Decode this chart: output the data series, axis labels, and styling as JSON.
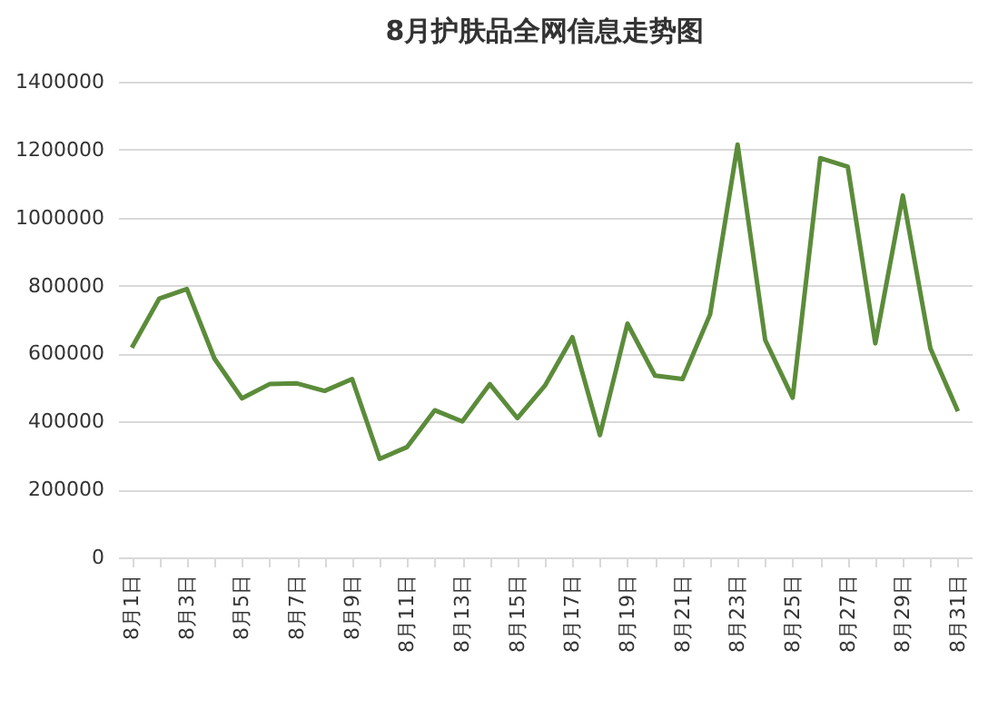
{
  "chart_data": {
    "type": "line",
    "title": "8月护肤品全网信息走势图",
    "categories": [
      "8月1日",
      null,
      "8月3日",
      null,
      "8月5日",
      null,
      "8月7日",
      null,
      "8月9日",
      null,
      "8月11日",
      null,
      "8月13日",
      null,
      "8月15日",
      null,
      "8月17日",
      null,
      "8月19日",
      null,
      "8月21日",
      null,
      "8月23日",
      null,
      "8月25日",
      null,
      "8月27日",
      null,
      "8月29日",
      null,
      "8月31日"
    ],
    "series": [
      {
        "color": "#5b8c3a",
        "values": [
          617000,
          762000,
          790000,
          585000,
          468000,
          510000,
          512000,
          490000,
          525000,
          290000,
          325000,
          433000,
          400000,
          510000,
          410000,
          505000,
          648000,
          360000,
          688000,
          535000,
          525000,
          715000,
          1215000,
          640000,
          470000,
          1175000,
          1150000,
          630000,
          1065000,
          615000,
          430000
        ]
      }
    ],
    "ylim": [
      0,
      1400000
    ],
    "yticks": [
      0,
      200000,
      400000,
      600000,
      800000,
      1000000,
      1200000,
      1400000
    ],
    "grid": "y",
    "legend": false,
    "marker": "none",
    "line_style": "solid"
  }
}
